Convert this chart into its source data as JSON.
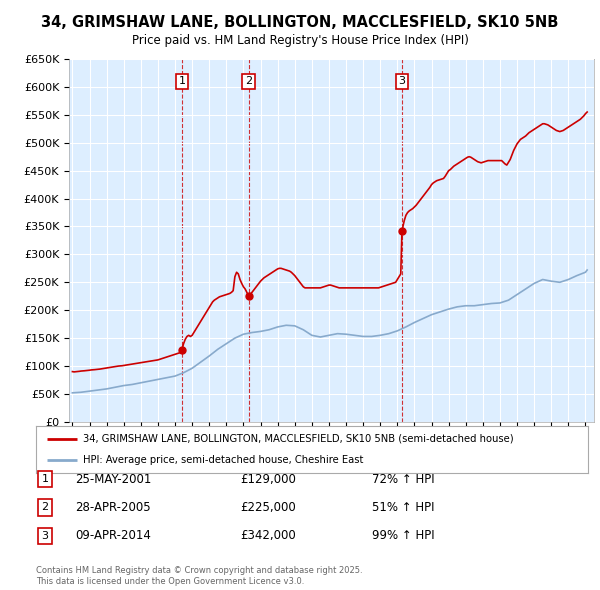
{
  "title": "34, GRIMSHAW LANE, BOLLINGTON, MACCLESFIELD, SK10 5NB",
  "subtitle": "Price paid vs. HM Land Registry's House Price Index (HPI)",
  "red_line_color": "#cc0000",
  "blue_line_color": "#88aacc",
  "plot_bg_color": "#ddeeff",
  "grid_color": "#ffffff",
  "sales": [
    {
      "year": 2001.4,
      "price": 129000,
      "label": "1"
    },
    {
      "year": 2005.3,
      "price": 225000,
      "label": "2"
    },
    {
      "year": 2014.27,
      "price": 342000,
      "label": "3"
    }
  ],
  "sale_dates": [
    "25-MAY-2001",
    "28-APR-2005",
    "09-APR-2014"
  ],
  "sale_prices": [
    "£129,000",
    "£225,000",
    "£342,000"
  ],
  "sale_hpi": [
    "72% ↑ HPI",
    "51% ↑ HPI",
    "99% ↑ HPI"
  ],
  "legend_line1": "34, GRIMSHAW LANE, BOLLINGTON, MACCLESFIELD, SK10 5NB (semi-detached house)",
  "legend_line2": "HPI: Average price, semi-detached house, Cheshire East",
  "footer": "Contains HM Land Registry data © Crown copyright and database right 2025.\nThis data is licensed under the Open Government Licence v3.0.",
  "ylim": [
    0,
    650000
  ],
  "xlim_start": 1995,
  "xlim_end": 2025.5,
  "red_points": [
    [
      1995.0,
      90000
    ],
    [
      1995.1,
      89500
    ],
    [
      1995.2,
      89800
    ],
    [
      1995.3,
      90200
    ],
    [
      1995.4,
      90500
    ],
    [
      1995.5,
      91000
    ],
    [
      1995.6,
      91200
    ],
    [
      1995.7,
      91500
    ],
    [
      1995.8,
      91800
    ],
    [
      1995.9,
      92000
    ],
    [
      1996.0,
      92500
    ],
    [
      1996.1,
      93000
    ],
    [
      1996.2,
      93200
    ],
    [
      1996.3,
      93500
    ],
    [
      1996.4,
      93800
    ],
    [
      1996.5,
      94000
    ],
    [
      1996.6,
      94500
    ],
    [
      1996.7,
      95000
    ],
    [
      1996.8,
      95500
    ],
    [
      1996.9,
      96000
    ],
    [
      1997.0,
      96500
    ],
    [
      1997.1,
      97000
    ],
    [
      1997.2,
      97500
    ],
    [
      1997.3,
      98000
    ],
    [
      1997.4,
      98500
    ],
    [
      1997.5,
      99000
    ],
    [
      1997.6,
      99500
    ],
    [
      1997.7,
      100000
    ],
    [
      1997.8,
      100200
    ],
    [
      1997.9,
      100500
    ],
    [
      1998.0,
      101000
    ],
    [
      1998.1,
      101500
    ],
    [
      1998.2,
      102000
    ],
    [
      1998.3,
      102500
    ],
    [
      1998.4,
      103000
    ],
    [
      1998.5,
      103500
    ],
    [
      1998.6,
      104000
    ],
    [
      1998.7,
      104500
    ],
    [
      1998.8,
      105000
    ],
    [
      1998.9,
      105500
    ],
    [
      1999.0,
      106000
    ],
    [
      1999.1,
      106500
    ],
    [
      1999.2,
      107000
    ],
    [
      1999.3,
      107500
    ],
    [
      1999.4,
      108000
    ],
    [
      1999.5,
      108500
    ],
    [
      1999.6,
      109000
    ],
    [
      1999.7,
      109500
    ],
    [
      1999.8,
      110000
    ],
    [
      1999.9,
      110500
    ],
    [
      2000.0,
      111000
    ],
    [
      2000.1,
      112000
    ],
    [
      2000.2,
      113000
    ],
    [
      2000.3,
      114000
    ],
    [
      2000.4,
      115000
    ],
    [
      2000.5,
      116000
    ],
    [
      2000.6,
      117000
    ],
    [
      2000.7,
      118000
    ],
    [
      2000.8,
      119000
    ],
    [
      2000.9,
      120000
    ],
    [
      2001.0,
      121000
    ],
    [
      2001.1,
      122000
    ],
    [
      2001.2,
      123000
    ],
    [
      2001.3,
      124000
    ],
    [
      2001.4,
      129000
    ],
    [
      2001.5,
      140000
    ],
    [
      2001.6,
      148000
    ],
    [
      2001.7,
      153000
    ],
    [
      2001.8,
      155000
    ],
    [
      2001.9,
      153000
    ],
    [
      2002.0,
      155000
    ],
    [
      2002.1,
      160000
    ],
    [
      2002.2,
      165000
    ],
    [
      2002.3,
      170000
    ],
    [
      2002.4,
      175000
    ],
    [
      2002.5,
      180000
    ],
    [
      2002.6,
      185000
    ],
    [
      2002.7,
      190000
    ],
    [
      2002.8,
      195000
    ],
    [
      2002.9,
      200000
    ],
    [
      2003.0,
      205000
    ],
    [
      2003.1,
      210000
    ],
    [
      2003.2,
      215000
    ],
    [
      2003.3,
      218000
    ],
    [
      2003.4,
      220000
    ],
    [
      2003.5,
      222000
    ],
    [
      2003.6,
      224000
    ],
    [
      2003.7,
      225000
    ],
    [
      2003.8,
      226000
    ],
    [
      2003.9,
      227000
    ],
    [
      2004.0,
      228000
    ],
    [
      2004.1,
      229000
    ],
    [
      2004.2,
      230000
    ],
    [
      2004.3,
      232000
    ],
    [
      2004.4,
      235000
    ],
    [
      2004.5,
      260000
    ],
    [
      2004.6,
      268000
    ],
    [
      2004.7,
      265000
    ],
    [
      2004.8,
      255000
    ],
    [
      2004.9,
      248000
    ],
    [
      2005.0,
      242000
    ],
    [
      2005.1,
      238000
    ],
    [
      2005.2,
      232000
    ],
    [
      2005.3,
      225000
    ],
    [
      2005.4,
      228000
    ],
    [
      2005.5,
      232000
    ],
    [
      2005.6,
      236000
    ],
    [
      2005.7,
      240000
    ],
    [
      2005.8,
      244000
    ],
    [
      2005.9,
      248000
    ],
    [
      2006.0,
      252000
    ],
    [
      2006.1,
      255000
    ],
    [
      2006.2,
      258000
    ],
    [
      2006.3,
      260000
    ],
    [
      2006.4,
      262000
    ],
    [
      2006.5,
      264000
    ],
    [
      2006.6,
      266000
    ],
    [
      2006.7,
      268000
    ],
    [
      2006.8,
      270000
    ],
    [
      2006.9,
      272000
    ],
    [
      2007.0,
      274000
    ],
    [
      2007.1,
      275000
    ],
    [
      2007.2,
      275000
    ],
    [
      2007.3,
      274000
    ],
    [
      2007.4,
      273000
    ],
    [
      2007.5,
      272000
    ],
    [
      2007.6,
      271000
    ],
    [
      2007.7,
      270000
    ],
    [
      2007.8,
      268000
    ],
    [
      2007.9,
      265000
    ],
    [
      2008.0,
      262000
    ],
    [
      2008.1,
      258000
    ],
    [
      2008.2,
      254000
    ],
    [
      2008.3,
      250000
    ],
    [
      2008.4,
      246000
    ],
    [
      2008.5,
      242000
    ],
    [
      2008.6,
      240000
    ],
    [
      2008.7,
      240000
    ],
    [
      2008.8,
      240000
    ],
    [
      2008.9,
      240000
    ],
    [
      2009.0,
      240000
    ],
    [
      2009.1,
      240000
    ],
    [
      2009.2,
      240000
    ],
    [
      2009.3,
      240000
    ],
    [
      2009.4,
      240000
    ],
    [
      2009.5,
      240000
    ],
    [
      2009.6,
      241000
    ],
    [
      2009.7,
      242000
    ],
    [
      2009.8,
      243000
    ],
    [
      2009.9,
      244000
    ],
    [
      2010.0,
      245000
    ],
    [
      2010.1,
      245000
    ],
    [
      2010.2,
      244000
    ],
    [
      2010.3,
      243000
    ],
    [
      2010.4,
      242000
    ],
    [
      2010.5,
      241000
    ],
    [
      2010.6,
      240000
    ],
    [
      2010.7,
      240000
    ],
    [
      2010.8,
      240000
    ],
    [
      2010.9,
      240000
    ],
    [
      2011.0,
      240000
    ],
    [
      2011.1,
      240000
    ],
    [
      2011.2,
      240000
    ],
    [
      2011.3,
      240000
    ],
    [
      2011.4,
      240000
    ],
    [
      2011.5,
      240000
    ],
    [
      2011.6,
      240000
    ],
    [
      2011.7,
      240000
    ],
    [
      2011.8,
      240000
    ],
    [
      2011.9,
      240000
    ],
    [
      2012.0,
      240000
    ],
    [
      2012.1,
      240000
    ],
    [
      2012.2,
      240000
    ],
    [
      2012.3,
      240000
    ],
    [
      2012.4,
      240000
    ],
    [
      2012.5,
      240000
    ],
    [
      2012.6,
      240000
    ],
    [
      2012.7,
      240000
    ],
    [
      2012.8,
      240000
    ],
    [
      2012.9,
      240000
    ],
    [
      2013.0,
      241000
    ],
    [
      2013.1,
      242000
    ],
    [
      2013.2,
      243000
    ],
    [
      2013.3,
      244000
    ],
    [
      2013.4,
      245000
    ],
    [
      2013.5,
      246000
    ],
    [
      2013.6,
      247000
    ],
    [
      2013.7,
      248000
    ],
    [
      2013.8,
      249000
    ],
    [
      2013.9,
      250000
    ],
    [
      2014.0,
      255000
    ],
    [
      2014.1,
      260000
    ],
    [
      2014.2,
      265000
    ],
    [
      2014.27,
      342000
    ],
    [
      2014.4,
      360000
    ],
    [
      2014.5,
      370000
    ],
    [
      2014.6,
      375000
    ],
    [
      2014.7,
      378000
    ],
    [
      2014.8,
      380000
    ],
    [
      2014.9,
      382000
    ],
    [
      2015.0,
      385000
    ],
    [
      2015.1,
      388000
    ],
    [
      2015.2,
      392000
    ],
    [
      2015.3,
      396000
    ],
    [
      2015.4,
      400000
    ],
    [
      2015.5,
      404000
    ],
    [
      2015.6,
      408000
    ],
    [
      2015.7,
      412000
    ],
    [
      2015.8,
      416000
    ],
    [
      2015.9,
      420000
    ],
    [
      2016.0,
      425000
    ],
    [
      2016.1,
      428000
    ],
    [
      2016.2,
      430000
    ],
    [
      2016.3,
      432000
    ],
    [
      2016.4,
      433000
    ],
    [
      2016.5,
      434000
    ],
    [
      2016.6,
      435000
    ],
    [
      2016.7,
      436000
    ],
    [
      2016.8,
      440000
    ],
    [
      2016.9,
      445000
    ],
    [
      2017.0,
      450000
    ],
    [
      2017.1,
      452000
    ],
    [
      2017.2,
      455000
    ],
    [
      2017.3,
      458000
    ],
    [
      2017.4,
      460000
    ],
    [
      2017.5,
      462000
    ],
    [
      2017.6,
      464000
    ],
    [
      2017.7,
      466000
    ],
    [
      2017.8,
      468000
    ],
    [
      2017.9,
      470000
    ],
    [
      2018.0,
      472000
    ],
    [
      2018.1,
      474000
    ],
    [
      2018.2,
      475000
    ],
    [
      2018.3,
      474000
    ],
    [
      2018.4,
      472000
    ],
    [
      2018.5,
      470000
    ],
    [
      2018.6,
      468000
    ],
    [
      2018.7,
      466000
    ],
    [
      2018.8,
      465000
    ],
    [
      2018.9,
      464000
    ],
    [
      2019.0,
      465000
    ],
    [
      2019.1,
      466000
    ],
    [
      2019.2,
      467000
    ],
    [
      2019.3,
      468000
    ],
    [
      2019.4,
      468000
    ],
    [
      2019.5,
      468000
    ],
    [
      2019.6,
      468000
    ],
    [
      2019.7,
      468000
    ],
    [
      2019.8,
      468000
    ],
    [
      2019.9,
      468000
    ],
    [
      2020.0,
      468000
    ],
    [
      2020.1,
      468000
    ],
    [
      2020.2,
      465000
    ],
    [
      2020.3,
      462000
    ],
    [
      2020.4,
      460000
    ],
    [
      2020.5,
      465000
    ],
    [
      2020.6,
      470000
    ],
    [
      2020.7,
      478000
    ],
    [
      2020.8,
      486000
    ],
    [
      2020.9,
      492000
    ],
    [
      2021.0,
      498000
    ],
    [
      2021.1,
      502000
    ],
    [
      2021.2,
      506000
    ],
    [
      2021.3,
      508000
    ],
    [
      2021.4,
      510000
    ],
    [
      2021.5,
      512000
    ],
    [
      2021.6,
      515000
    ],
    [
      2021.7,
      518000
    ],
    [
      2021.8,
      520000
    ],
    [
      2021.9,
      522000
    ],
    [
      2022.0,
      524000
    ],
    [
      2022.1,
      526000
    ],
    [
      2022.2,
      528000
    ],
    [
      2022.3,
      530000
    ],
    [
      2022.4,
      532000
    ],
    [
      2022.5,
      534000
    ],
    [
      2022.6,
      534000
    ],
    [
      2022.7,
      533000
    ],
    [
      2022.8,
      532000
    ],
    [
      2022.9,
      530000
    ],
    [
      2023.0,
      528000
    ],
    [
      2023.1,
      526000
    ],
    [
      2023.2,
      524000
    ],
    [
      2023.3,
      522000
    ],
    [
      2023.4,
      521000
    ],
    [
      2023.5,
      520000
    ],
    [
      2023.6,
      521000
    ],
    [
      2023.7,
      522000
    ],
    [
      2023.8,
      524000
    ],
    [
      2023.9,
      526000
    ],
    [
      2024.0,
      528000
    ],
    [
      2024.1,
      530000
    ],
    [
      2024.2,
      532000
    ],
    [
      2024.3,
      534000
    ],
    [
      2024.4,
      536000
    ],
    [
      2024.5,
      538000
    ],
    [
      2024.6,
      540000
    ],
    [
      2024.7,
      542000
    ],
    [
      2024.8,
      545000
    ],
    [
      2024.9,
      548000
    ],
    [
      2025.0,
      552000
    ],
    [
      2025.1,
      555000
    ]
  ],
  "blue_points": [
    [
      1995.0,
      52000
    ],
    [
      1995.5,
      53000
    ],
    [
      1996.0,
      55000
    ],
    [
      1996.5,
      57000
    ],
    [
      1997.0,
      59000
    ],
    [
      1997.5,
      62000
    ],
    [
      1998.0,
      65000
    ],
    [
      1998.5,
      67000
    ],
    [
      1999.0,
      70000
    ],
    [
      1999.5,
      73000
    ],
    [
      2000.0,
      76000
    ],
    [
      2000.5,
      79000
    ],
    [
      2001.0,
      82000
    ],
    [
      2001.5,
      88000
    ],
    [
      2002.0,
      96000
    ],
    [
      2002.5,
      107000
    ],
    [
      2003.0,
      118000
    ],
    [
      2003.5,
      130000
    ],
    [
      2004.0,
      140000
    ],
    [
      2004.5,
      150000
    ],
    [
      2005.0,
      157000
    ],
    [
      2005.5,
      160000
    ],
    [
      2006.0,
      162000
    ],
    [
      2006.5,
      165000
    ],
    [
      2007.0,
      170000
    ],
    [
      2007.5,
      173000
    ],
    [
      2008.0,
      172000
    ],
    [
      2008.5,
      165000
    ],
    [
      2009.0,
      155000
    ],
    [
      2009.5,
      152000
    ],
    [
      2010.0,
      155000
    ],
    [
      2010.5,
      158000
    ],
    [
      2011.0,
      157000
    ],
    [
      2011.5,
      155000
    ],
    [
      2012.0,
      153000
    ],
    [
      2012.5,
      153000
    ],
    [
      2013.0,
      155000
    ],
    [
      2013.5,
      158000
    ],
    [
      2014.0,
      163000
    ],
    [
      2014.5,
      170000
    ],
    [
      2015.0,
      178000
    ],
    [
      2015.5,
      185000
    ],
    [
      2016.0,
      192000
    ],
    [
      2016.5,
      197000
    ],
    [
      2017.0,
      202000
    ],
    [
      2017.5,
      206000
    ],
    [
      2018.0,
      208000
    ],
    [
      2018.5,
      208000
    ],
    [
      2019.0,
      210000
    ],
    [
      2019.5,
      212000
    ],
    [
      2020.0,
      213000
    ],
    [
      2020.5,
      218000
    ],
    [
      2021.0,
      228000
    ],
    [
      2021.5,
      238000
    ],
    [
      2022.0,
      248000
    ],
    [
      2022.5,
      255000
    ],
    [
      2023.0,
      252000
    ],
    [
      2023.5,
      250000
    ],
    [
      2024.0,
      255000
    ],
    [
      2024.5,
      262000
    ],
    [
      2025.0,
      268000
    ],
    [
      2025.1,
      272000
    ]
  ]
}
